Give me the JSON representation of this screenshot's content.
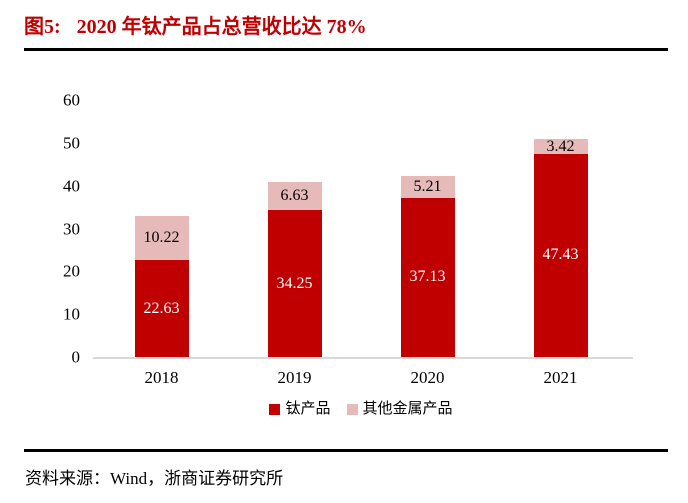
{
  "header": {
    "figure_label": "图5:",
    "title": "2020 年钛产品占总营收比达 78%"
  },
  "footer": {
    "source": "资料来源：Wind，浙商证券研究所"
  },
  "colors": {
    "title_red": "#C00000",
    "series_red": "#C00000",
    "series_rose": "#E7BABA",
    "axis_line": "#D9D9D9",
    "text": "#000000",
    "rule": "#000000"
  },
  "chart_data": {
    "type": "bar",
    "stacked": true,
    "title": "图5: 2020 年钛产品占总营收比达 78%",
    "categories": [
      "2018",
      "2019",
      "2020",
      "2021"
    ],
    "series": [
      {
        "name": "钛产品",
        "color": "#C00000",
        "label_color": "#FFFFFF",
        "values": [
          22.63,
          34.25,
          37.13,
          47.43
        ]
      },
      {
        "name": "其他金属产品",
        "color": "#E7BABA",
        "label_color": "#000000",
        "values": [
          10.22,
          6.63,
          5.21,
          3.42
        ]
      }
    ],
    "totals": [
      32.85,
      40.88,
      42.34,
      50.85
    ],
    "xlabel": "",
    "ylabel": "",
    "ylim": [
      0,
      60
    ],
    "yticks": [
      0,
      10,
      20,
      30,
      40,
      50,
      60
    ],
    "grid": false,
    "value_labels": true,
    "value_label_decimals": 2,
    "legend_position": "bottom-center"
  }
}
